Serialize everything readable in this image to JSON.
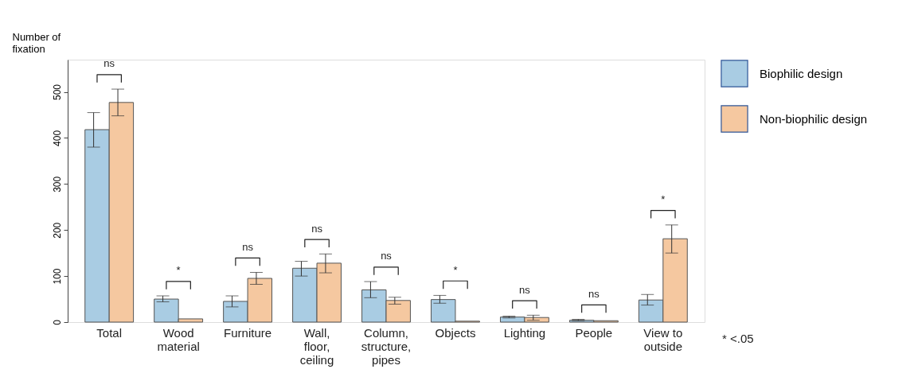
{
  "chart_data": {
    "type": "bar",
    "categories": [
      "Total",
      "Wood\nmaterial",
      "Furniture",
      "Wall,\nfloor,\nceiling",
      "Column,\nstructure,\npipes",
      "Objects",
      "Lighting",
      "People",
      "View to\noutside"
    ],
    "series": [
      {
        "name": "Biophilic design",
        "color": "#a9cce3",
        "values": [
          418,
          50,
          45,
          117,
          70,
          49,
          11,
          4,
          48
        ],
        "errors": [
          [
            380,
            455
          ],
          [
            44,
            57
          ],
          [
            33,
            57
          ],
          [
            100,
            132
          ],
          [
            53,
            88
          ],
          [
            41,
            58
          ],
          [
            9,
            13
          ],
          [
            3,
            6
          ],
          [
            37,
            60
          ]
        ]
      },
      {
        "name": "Non-biophilic design",
        "color": "#f5c8a0",
        "values": [
          477,
          7,
          95,
          128,
          47,
          2,
          10,
          3,
          181
        ],
        "errors": [
          [
            448,
            506
          ],
          null,
          [
            82,
            108
          ],
          [
            107,
            148
          ],
          [
            39,
            54
          ],
          null,
          [
            4,
            15
          ],
          null,
          [
            150,
            211
          ]
        ]
      }
    ],
    "ylabel": "Number of\nfixation",
    "ylim": [
      0,
      570
    ],
    "yticks": [
      0,
      100,
      200,
      300,
      400,
      500
    ],
    "legend": "right",
    "annotations": [
      "ns",
      "*",
      "ns",
      "ns",
      "ns",
      "*",
      "ns",
      "ns",
      "*",
      "* <.05"
    ]
  }
}
